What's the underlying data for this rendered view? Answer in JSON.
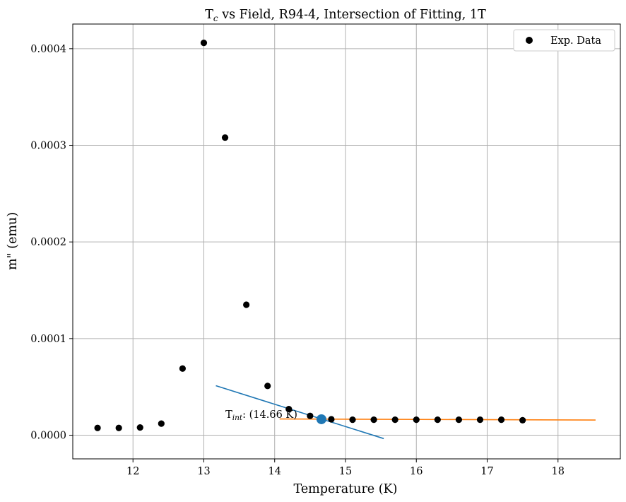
{
  "chart_data": {
    "type": "scatter",
    "title_prefix": "T",
    "title_sub": "c",
    "title_rest": " vs Field, R94-4, Intersection of Fitting, 1T",
    "xlabel": "Temperature (K)",
    "ylabel": "m\" (emu)",
    "xlim": [
      11.15,
      18.88
    ],
    "ylim": [
      -2.45e-05,
      0.0004255
    ],
    "xticks": [
      12,
      13,
      14,
      15,
      16,
      17,
      18
    ],
    "xtick_labels": [
      "12",
      "13",
      "14",
      "15",
      "16",
      "17",
      "18"
    ],
    "yticks": [
      0.0,
      0.0001,
      0.0002,
      0.0003,
      0.0004
    ],
    "ytick_labels": [
      "0.0000",
      "0.0001",
      "0.0002",
      "0.0003",
      "0.0004"
    ],
    "grid": true,
    "legend_position": "top-right",
    "series": [
      {
        "name": "Exp. Data",
        "color": "#000000",
        "x": [
          11.5,
          11.8,
          12.1,
          12.4,
          12.7,
          13.0,
          13.3,
          13.6,
          13.9,
          14.2,
          14.5,
          14.8,
          15.1,
          15.4,
          15.7,
          16.0,
          16.3,
          16.6,
          16.9,
          17.2,
          17.5
        ],
        "y": [
          7.5e-06,
          7.5e-06,
          8e-06,
          1.2e-05,
          6.9e-05,
          0.000406,
          0.000308,
          0.000135,
          5.1e-05,
          2.7e-05,
          2e-05,
          1.65e-05,
          1.6e-05,
          1.6e-05,
          1.6e-05,
          1.6e-05,
          1.6e-05,
          1.6e-05,
          1.6e-05,
          1.6e-05,
          1.55e-05
        ]
      }
    ],
    "fit_lines": [
      {
        "color": "#1f77b4",
        "x": [
          13.17,
          15.54
        ],
        "y": [
          5.12e-05,
          -3.5e-06
        ]
      },
      {
        "color": "#ff7f0e",
        "x": [
          14.07,
          18.53
        ],
        "y": [
          1.68e-05,
          1.57e-05
        ]
      }
    ],
    "intersection": {
      "x": 14.66,
      "y": 1.65e-05,
      "color": "#1f77b4",
      "label_prefix": "T",
      "label_sub": "int",
      "label_rest": ": (14.66 K)"
    }
  }
}
